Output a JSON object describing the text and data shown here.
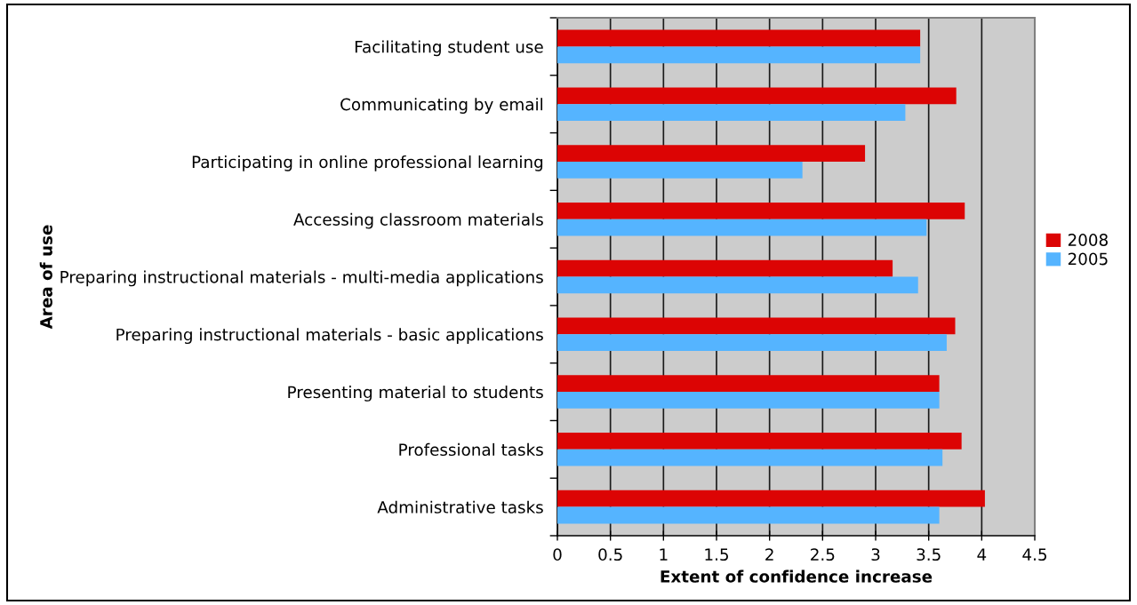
{
  "chart_data": {
    "type": "bar",
    "orientation": "horizontal",
    "xlabel": "Extent of confidence increase",
    "ylabel": "Area of use",
    "categories": [
      "Facilitating student use",
      "Communicating by email",
      "Participating in online professional learning",
      "Accessing classroom materials",
      "Preparing instructional materials - multi-media applications",
      "Preparing instructional materials - basic applications",
      "Presenting material to students",
      "Professional tasks",
      "Administrative tasks"
    ],
    "series": [
      {
        "name": "2008",
        "color": "#dc0404",
        "values": [
          3.42,
          3.76,
          2.9,
          3.84,
          3.16,
          3.75,
          3.6,
          3.81,
          4.03
        ]
      },
      {
        "name": "2005",
        "color": "#55b4ff",
        "values": [
          3.42,
          3.28,
          2.31,
          3.48,
          3.4,
          3.67,
          3.6,
          3.63,
          3.6
        ]
      }
    ],
    "xlim": [
      0,
      4.5
    ],
    "xticks": [
      0,
      0.5,
      1,
      1.5,
      2,
      2.5,
      3,
      3.5,
      4,
      4.5
    ],
    "grid": "x",
    "legend": "right"
  }
}
